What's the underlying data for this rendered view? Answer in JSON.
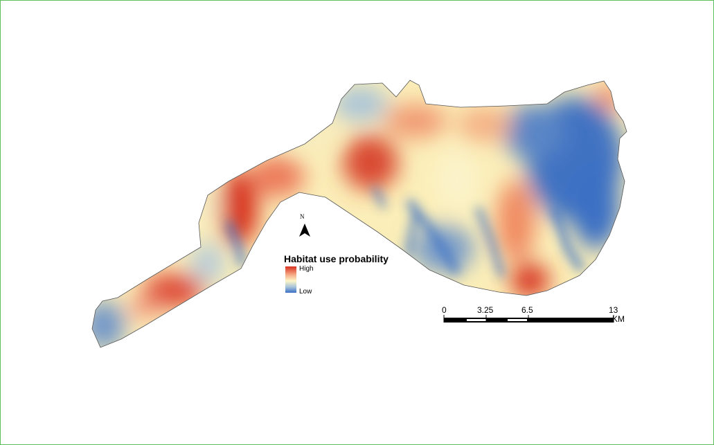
{
  "legend": {
    "title": "Habitat use probability",
    "high_label": "High",
    "low_label": "Low",
    "ramp_colors": [
      "#d7301f",
      "#f4a582",
      "#fdf6c8",
      "#a9c4d9",
      "#3a6fc4"
    ]
  },
  "north_arrow": {
    "label": "N"
  },
  "scale_bar": {
    "ticks": [
      "0",
      "3.25",
      "6.5",
      "13"
    ],
    "unit": "KM"
  },
  "colors": {
    "frame_border": "#5cbf5c",
    "high": "#d7301f",
    "mid": "#fdf6c8",
    "low": "#3a6fc4"
  }
}
